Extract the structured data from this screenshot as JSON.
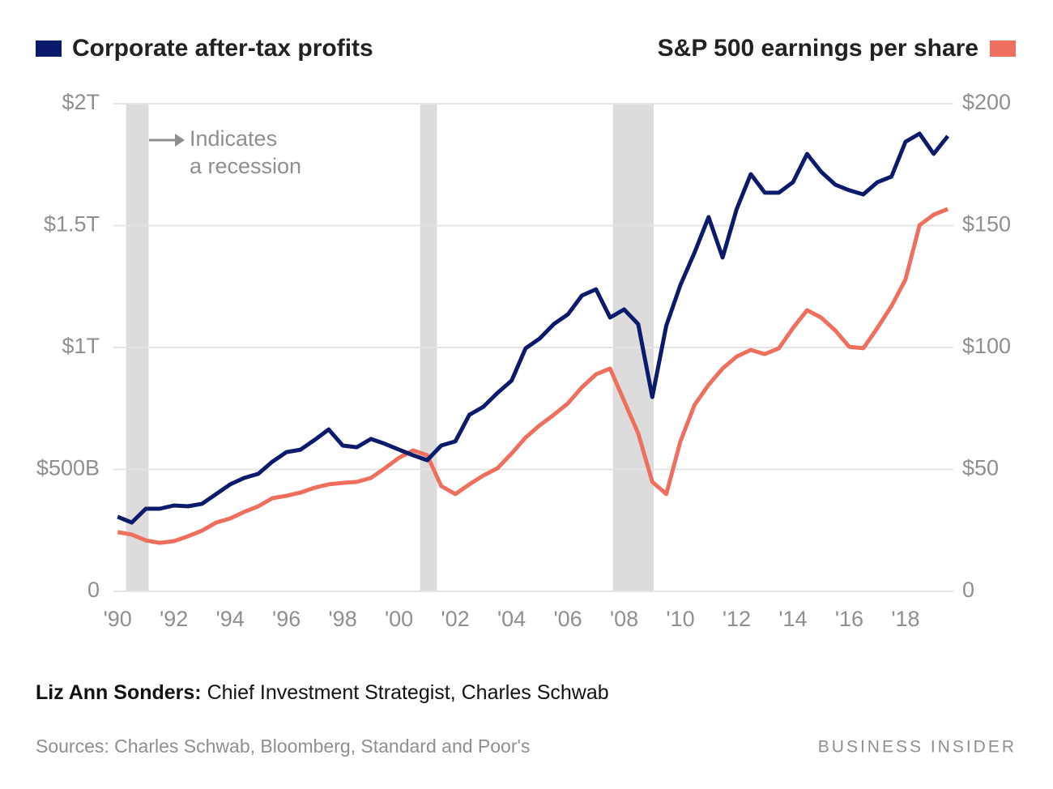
{
  "chart_data": {
    "type": "line",
    "legend": "top",
    "grid": true,
    "x": [
      1990,
      1990.5,
      1991,
      1991.5,
      1992,
      1992.5,
      1993,
      1993.5,
      1994,
      1994.5,
      1995,
      1995.5,
      1996,
      1996.5,
      1997,
      1997.5,
      1998,
      1998.5,
      1999,
      1999.5,
      2000,
      2000.5,
      2001,
      2001.5,
      2002,
      2002.5,
      2003,
      2003.5,
      2004,
      2004.5,
      2005,
      2005.5,
      2006,
      2006.5,
      2007,
      2007.5,
      2008,
      2008.5,
      2009,
      2009.5,
      2010,
      2010.5,
      2011,
      2011.5,
      2012,
      2012.5,
      2013,
      2013.5,
      2014,
      2014.5,
      2015,
      2015.5,
      2016,
      2016.5,
      2017,
      2017.5,
      2018,
      2018.5,
      2019,
      2019.5
    ],
    "xlim": [
      1989.85,
      2019.7
    ],
    "xticks": [
      {
        "value": 1990,
        "label": "'90"
      },
      {
        "value": 1992,
        "label": "'92"
      },
      {
        "value": 1994,
        "label": "'94"
      },
      {
        "value": 1996,
        "label": "'96"
      },
      {
        "value": 1998,
        "label": "'98"
      },
      {
        "value": 2000,
        "label": "'00"
      },
      {
        "value": 2002,
        "label": "'02"
      },
      {
        "value": 2004,
        "label": "'04"
      },
      {
        "value": 2006,
        "label": "'06"
      },
      {
        "value": 2008,
        "label": "'08"
      },
      {
        "value": 2010,
        "label": "'10"
      },
      {
        "value": 2012,
        "label": "'12"
      },
      {
        "value": 2014,
        "label": "'14"
      },
      {
        "value": 2016,
        "label": "'16"
      },
      {
        "value": 2018,
        "label": "'18"
      }
    ],
    "ylim": [
      0,
      2000
    ],
    "yticks": [
      0,
      {
        "value": 500,
        "label": "$500B"
      },
      {
        "value": 1000,
        "label": "$1T"
      },
      {
        "value": 1500,
        "label": "$1.5T"
      },
      {
        "value": 2000,
        "label": "$2T"
      }
    ],
    "y2lim": [
      0,
      200
    ],
    "y2ticks": [
      0,
      {
        "value": 50,
        "label": "$50"
      },
      {
        "value": 100,
        "label": "$100"
      },
      {
        "value": 150,
        "label": "$150"
      },
      {
        "value": 200,
        "label": "$200"
      }
    ],
    "recessions": [
      [
        1990.3,
        1991.1
      ],
      [
        2000.75,
        2001.35
      ],
      [
        2007.6,
        2009.05
      ]
    ],
    "recession_color": "#dcdcdc",
    "annotation": [
      "Indicates",
      "a recession"
    ],
    "series": [
      {
        "name": "Corporate after-tax profits",
        "color": "#0c1a6b",
        "values": [
          306,
          282,
          339,
          339,
          352,
          349,
          359,
          399,
          439,
          465,
          482,
          532,
          571,
          581,
          621,
          664,
          598,
          591,
          625,
          605,
          581,
          558,
          538,
          598,
          615,
          724,
          757,
          814,
          864,
          997,
          1037,
          1096,
          1136,
          1213,
          1239,
          1123,
          1156,
          1096,
          797,
          1090,
          1256,
          1389,
          1535,
          1369,
          1568,
          1711,
          1635,
          1635,
          1678,
          1794,
          1721,
          1668,
          1645,
          1628,
          1678,
          1701,
          1844,
          1877,
          1794,
          1867
        ]
      },
      {
        "name": "S&P 500 earnings per share",
        "color": "#ef6f5f",
        "axis": "y2",
        "values": [
          24.3,
          23.3,
          20.9,
          19.9,
          20.6,
          22.6,
          24.9,
          28.2,
          29.9,
          32.6,
          34.9,
          38.2,
          39.2,
          40.5,
          42.5,
          43.9,
          44.5,
          44.9,
          46.5,
          50.5,
          54.8,
          57.8,
          55.8,
          43.2,
          39.9,
          43.9,
          47.5,
          50.5,
          56.5,
          63.1,
          68.1,
          72.4,
          77.1,
          83.7,
          89.0,
          91.4,
          78.1,
          64.8,
          44.9,
          39.9,
          61.5,
          76.4,
          84.7,
          91.4,
          96.3,
          99.0,
          97.3,
          99.7,
          108,
          115.3,
          112.3,
          107,
          100.3,
          99.7,
          108,
          117,
          127.9,
          150.2,
          154.5,
          156.8
        ]
      }
    ]
  },
  "footer": {
    "person": "Liz Ann Sonders:",
    "role": " Chief Investment Strategist, Charles Schwab",
    "sources_label": "Sources:",
    "sources": " Charles Schwab, Bloomberg, Standard and Poor's",
    "brand": "BUSINESS INSIDER"
  }
}
